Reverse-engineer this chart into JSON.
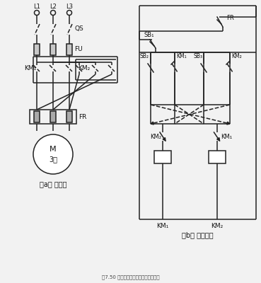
{
  "bg_color": "#f2f2f2",
  "line_color": "#222222",
  "title": "图7.50 三相异步电动机正反转控制电路",
  "label_a": "（a） 主电路",
  "label_b": "（b） 控制电路",
  "L1": "L1",
  "L2": "L2",
  "L3": "L3",
  "QS": "QS",
  "FU": "FU",
  "KM1_left": "KM₁",
  "KM2_left": "KM₂",
  "FR_main": "FR",
  "M_top": "M",
  "M_bot": "3～",
  "FR_ctrl": "FR",
  "SB1": "SB₁",
  "SB2": "SB₂",
  "KM1_interlock": "KM₁",
  "SB3": "SB₃",
  "KM2_interlock": "KM₂",
  "KM2_coil": "KM₂",
  "KM1_coil": "KM₁",
  "KM1_bottom": "KM₁",
  "KM2_bottom": "KM₂"
}
